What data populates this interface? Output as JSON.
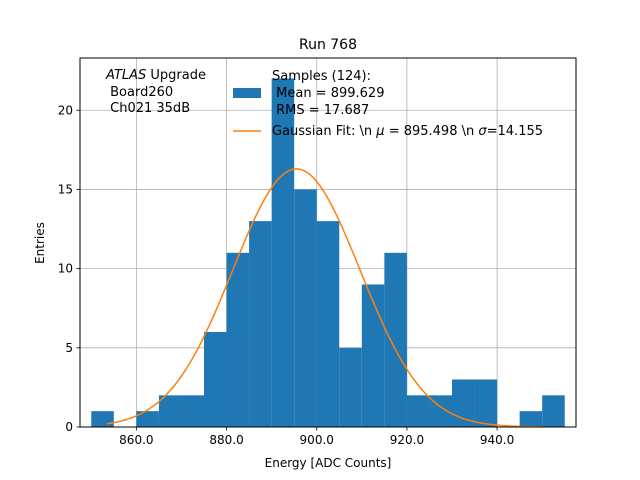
{
  "chart_data": {
    "type": "bar",
    "title": "Run 768",
    "xlabel": "Energy [ADC Counts]",
    "ylabel": "Entries",
    "xlim": [
      847.5,
      957.5
    ],
    "ylim": [
      0,
      23.3
    ],
    "grid": true,
    "x_ticks": [
      {
        "value": 860,
        "label": "860.0"
      },
      {
        "value": 880,
        "label": "880.0"
      },
      {
        "value": 900,
        "label": "900.0"
      },
      {
        "value": 920,
        "label": "920.0"
      },
      {
        "value": 940,
        "label": "940.0"
      }
    ],
    "y_ticks": [
      {
        "value": 0,
        "label": "0"
      },
      {
        "value": 5,
        "label": "5"
      },
      {
        "value": 10,
        "label": "10"
      },
      {
        "value": 15,
        "label": "15"
      },
      {
        "value": 20,
        "label": "20"
      }
    ],
    "histogram": {
      "name": "Samples (124):",
      "color": "#1f77b4",
      "bin_width": 5,
      "bin_starts": [
        850,
        855,
        860,
        865,
        870,
        875,
        880,
        885,
        890,
        895,
        900,
        905,
        910,
        915,
        920,
        925,
        930,
        935,
        940,
        945,
        950
      ],
      "counts": [
        1,
        0,
        1,
        2,
        2,
        6,
        11,
        13,
        22,
        15,
        13,
        5,
        9,
        11,
        2,
        2,
        3,
        3,
        0,
        1,
        2
      ]
    },
    "gaussian_fit": {
      "name": "Gaussian Fit",
      "color": "#ff7f0e",
      "amplitude": 16.3,
      "mu": 895.498,
      "sigma": 14.155,
      "x_range": [
        853.5,
        950
      ]
    },
    "annotation": {
      "italic": "ATLAS",
      "rest": " Upgrade",
      "line2": " Board260",
      "line3": " Ch021 35dB"
    },
    "legend": {
      "location": "top-right",
      "hist_line1": "Samples (124):",
      "hist_line2": " Mean = 899.629",
      "hist_line3": " RMS = 17.687",
      "fit_prefix": "Gaussian Fit: \\n ",
      "fit_mu_symbol": "μ",
      "fit_mid": " = 895.498 \\n ",
      "fit_sigma_symbol": "σ",
      "fit_suffix": "=14.155"
    }
  }
}
